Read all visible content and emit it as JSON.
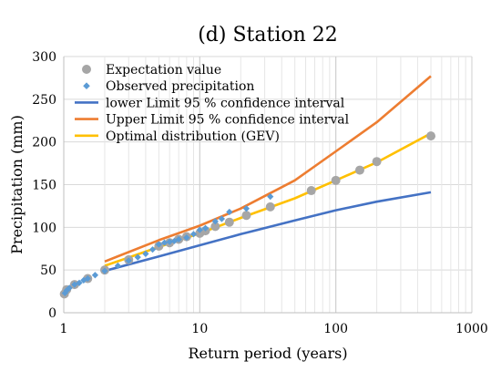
{
  "chart_data": {
    "type": "scatter",
    "title": "(d) Station 22",
    "xlabel": "Return period (years)",
    "ylabel": "Precipitation (mm)",
    "x_scale": "log",
    "xlim": [
      1,
      1000
    ],
    "ylim": [
      0,
      300
    ],
    "x_ticks": [
      1,
      10,
      100,
      1000
    ],
    "y_ticks": [
      0,
      50,
      100,
      150,
      200,
      250,
      300
    ],
    "grid": true,
    "legend_position": "top-left (inside plot)",
    "series": [
      {
        "name": "Expectation value",
        "kind": "markers",
        "marker": "circle",
        "color": "#a6a6a6",
        "points": [
          [
            1.01,
            22
          ],
          [
            1.05,
            27
          ],
          [
            1.2,
            33
          ],
          [
            1.5,
            40
          ],
          [
            2,
            50
          ],
          [
            3,
            62
          ],
          [
            5,
            78
          ],
          [
            6,
            82
          ],
          [
            7,
            86
          ],
          [
            8,
            89
          ],
          [
            10,
            93
          ],
          [
            11,
            96
          ],
          [
            13,
            101
          ],
          [
            16.5,
            106
          ],
          [
            22,
            114
          ],
          [
            33,
            124
          ],
          [
            66,
            143
          ],
          [
            100,
            155
          ],
          [
            150,
            167
          ],
          [
            200,
            177
          ],
          [
            500,
            207
          ]
        ]
      },
      {
        "name": "Observed precipitation",
        "kind": "markers",
        "marker": "diamond",
        "color": "#5b9bd5",
        "points": [
          [
            1.02,
            23
          ],
          [
            1.05,
            26
          ],
          [
            1.1,
            29
          ],
          [
            1.2,
            33
          ],
          [
            1.3,
            35
          ],
          [
            1.4,
            38
          ],
          [
            1.5,
            40
          ],
          [
            1.7,
            44
          ],
          [
            2,
            49
          ],
          [
            2.5,
            55
          ],
          [
            3,
            61
          ],
          [
            3.5,
            65
          ],
          [
            4,
            69
          ],
          [
            4.5,
            74
          ],
          [
            5,
            80
          ],
          [
            5.5,
            82
          ],
          [
            6,
            83
          ],
          [
            6.5,
            84
          ],
          [
            7,
            86
          ],
          [
            8,
            88
          ],
          [
            9,
            92
          ],
          [
            10,
            97
          ],
          [
            11,
            99
          ],
          [
            13,
            107
          ],
          [
            14.5,
            110
          ],
          [
            16.5,
            118
          ],
          [
            22,
            122
          ],
          [
            33,
            136
          ]
        ]
      },
      {
        "name": "lower Limit 95 % confidence interval",
        "kind": "line",
        "color": "#4472c4",
        "points": [
          [
            2,
            49
          ],
          [
            5,
            66
          ],
          [
            10,
            79
          ],
          [
            20,
            92
          ],
          [
            50,
            108
          ],
          [
            100,
            120
          ],
          [
            200,
            130
          ],
          [
            500,
            141
          ]
        ]
      },
      {
        "name": "Upper Limit 95 % confidence interval",
        "kind": "line",
        "color": "#ed7d31",
        "points": [
          [
            2,
            60
          ],
          [
            5,
            85
          ],
          [
            10,
            102
          ],
          [
            20,
            122
          ],
          [
            50,
            155
          ],
          [
            100,
            189
          ],
          [
            200,
            223
          ],
          [
            500,
            277
          ]
        ]
      },
      {
        "name": "Optimal distribution (GEV)",
        "kind": "line",
        "color": "#ffc000",
        "points": [
          [
            2,
            55
          ],
          [
            5,
            77
          ],
          [
            10,
            93
          ],
          [
            20,
            111
          ],
          [
            50,
            134
          ],
          [
            100,
            155
          ],
          [
            200,
            176
          ],
          [
            500,
            210
          ]
        ]
      }
    ]
  }
}
